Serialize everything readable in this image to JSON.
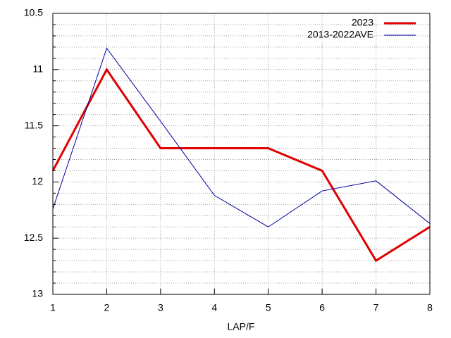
{
  "chart_data": {
    "type": "line",
    "xlabel": "LAP/F",
    "x": [
      1,
      2,
      3,
      4,
      5,
      6,
      7,
      8
    ],
    "series": [
      {
        "name": "2023",
        "color": "#e00000",
        "values": [
          11.9,
          11.0,
          11.7,
          11.7,
          11.7,
          11.9,
          12.7,
          12.4
        ]
      },
      {
        "name": "2013-2022AVE",
        "color": "#0000a0",
        "values": [
          12.24,
          10.81,
          11.46,
          12.12,
          12.4,
          12.08,
          11.99,
          12.37
        ]
      }
    ],
    "xlim": [
      1,
      8
    ],
    "xticks": [
      1,
      2,
      3,
      4,
      5,
      6,
      7,
      8
    ],
    "ylim": [
      13,
      10.5
    ],
    "yticks": [
      10.5,
      11,
      11.5,
      12,
      12.5,
      13
    ],
    "yminorticks": [
      10.6,
      10.7,
      10.8,
      10.9,
      11.1,
      11.2,
      11.3,
      11.4,
      11.6,
      11.7,
      11.8,
      11.9,
      12.1,
      12.2,
      12.3,
      12.4,
      12.6,
      12.7,
      12.8,
      12.9
    ],
    "grid": true,
    "legend": "top-right"
  }
}
